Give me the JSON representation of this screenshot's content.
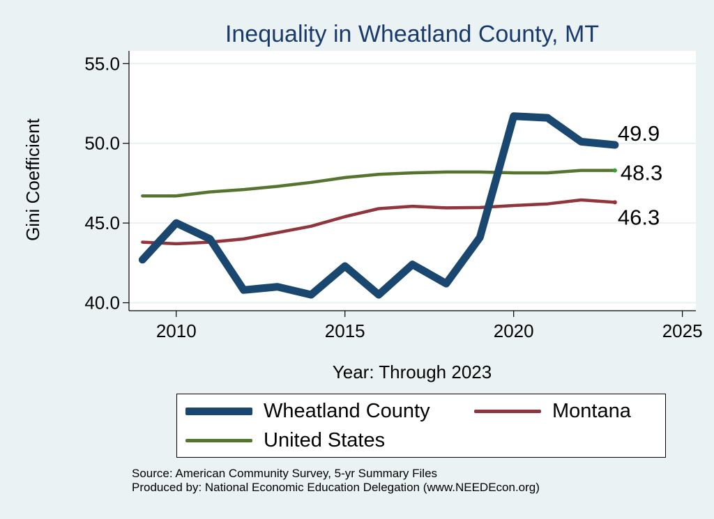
{
  "chart_data": {
    "type": "line",
    "title": "Inequality in Wheatland County, MT",
    "xlabel": "Year: Through 2023",
    "ylabel": "Gini Coefficient",
    "xlim": [
      2008.6,
      2025.4
    ],
    "ylim": [
      39.5,
      55.8
    ],
    "xticks": [
      2010,
      2015,
      2020,
      2025
    ],
    "yticks": [
      40,
      45,
      50,
      55
    ],
    "xtick_labels": [
      "2010",
      "2015",
      "2020",
      "2025"
    ],
    "ytick_labels": [
      "40.0",
      "45.0",
      "50.0",
      "55.0"
    ],
    "grid": "horizontal",
    "legend_position": "bottom",
    "x": [
      2009,
      2010,
      2011,
      2012,
      2013,
      2014,
      2015,
      2016,
      2017,
      2018,
      2019,
      2020,
      2021,
      2022,
      2023
    ],
    "series": [
      {
        "name": "Wheatland County",
        "color": "#1a476f",
        "values": [
          42.7,
          45.0,
          44.0,
          40.8,
          41.0,
          40.5,
          42.3,
          40.5,
          42.4,
          41.2,
          44.1,
          51.7,
          51.6,
          50.1,
          49.9
        ],
        "end_label": "49.9"
      },
      {
        "name": "Montana",
        "color": "#90353b",
        "values": [
          43.8,
          43.7,
          43.8,
          44.0,
          44.4,
          44.8,
          45.4,
          45.9,
          46.05,
          45.95,
          45.97,
          46.1,
          46.2,
          46.45,
          46.3
        ],
        "end_label": "46.3"
      },
      {
        "name": "United States",
        "color": "#55752f",
        "values": [
          46.7,
          46.7,
          46.95,
          47.1,
          47.3,
          47.55,
          47.85,
          48.05,
          48.15,
          48.2,
          48.2,
          48.15,
          48.15,
          48.3,
          48.3
        ],
        "end_label": "48.3"
      }
    ]
  },
  "legend": {
    "items": [
      {
        "label": "Wheatland County",
        "color": "#1a476f"
      },
      {
        "label": "Montana",
        "color": "#90353b"
      },
      {
        "label": "United States",
        "color": "#55752f"
      }
    ]
  },
  "notes": {
    "source": "Source: American Community Survey, 5-yr Summary Files",
    "produced_by": "Produced by: National Economic Education Delegation (www.NEEDEcon.org)"
  }
}
